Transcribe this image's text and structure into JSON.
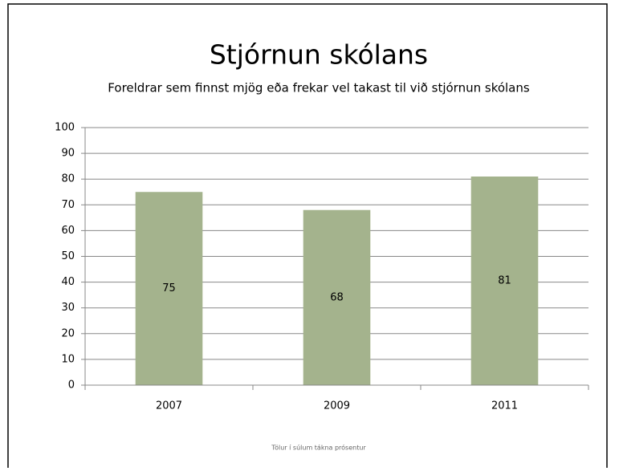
{
  "chart_data": {
    "type": "bar",
    "title": "Stjórnun skólans",
    "subtitle": "Foreldrar sem finnst mjög eða frekar vel takast til við stjórnun skólans",
    "categories": [
      "2007",
      "2009",
      "2011"
    ],
    "values": [
      75,
      68,
      81
    ],
    "color": "#a4b38d",
    "ylim": [
      0,
      100
    ],
    "yticks": [
      0,
      10,
      20,
      30,
      40,
      50,
      60,
      70,
      80,
      90,
      100
    ],
    "grid": true,
    "footnote": "Tölur í súlum tákna prósentur"
  }
}
